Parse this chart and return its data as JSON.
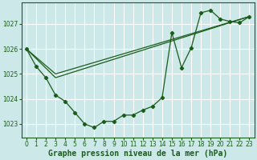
{
  "background_color": "#cce8e8",
  "grid_color": "#ffffff",
  "line_color": "#1a5c1a",
  "title": "Graphe pression niveau de la mer (hPa)",
  "title_fontsize": 7.0,
  "ylabel_ticks": [
    1023,
    1024,
    1025,
    1026,
    1027
  ],
  "xlim": [
    -0.5,
    23.5
  ],
  "ylim": [
    1022.45,
    1027.85
  ],
  "x_ticks": [
    0,
    1,
    2,
    3,
    4,
    5,
    6,
    7,
    8,
    9,
    10,
    11,
    12,
    13,
    14,
    15,
    16,
    17,
    18,
    19,
    20,
    21,
    22,
    23
  ],
  "line1_x": [
    0,
    1,
    2,
    3,
    4,
    5,
    6,
    7,
    8,
    9,
    10,
    11,
    12,
    13,
    14,
    15,
    16,
    17,
    18,
    19,
    20,
    21,
    22,
    23
  ],
  "line1_y": [
    1026.0,
    1025.3,
    1024.85,
    1024.15,
    1023.9,
    1023.45,
    1023.0,
    1022.85,
    1023.1,
    1023.1,
    1023.35,
    1023.35,
    1023.55,
    1023.7,
    1024.05,
    1026.65,
    1025.25,
    1026.05,
    1027.45,
    1027.55,
    1027.2,
    1027.1,
    1027.05,
    1027.3
  ],
  "line2_x": [
    0,
    3,
    23
  ],
  "line2_y": [
    1026.0,
    1025.0,
    1027.3
  ],
  "line3_x": [
    0,
    3,
    23
  ],
  "line3_y": [
    1026.0,
    1024.85,
    1027.3
  ],
  "marker_x": [
    0,
    1,
    2,
    3,
    4,
    5,
    6,
    7,
    8,
    9,
    10,
    11,
    12,
    13,
    14,
    15,
    16,
    17,
    18,
    19,
    20,
    21,
    22,
    23
  ],
  "marker_y": [
    1026.0,
    1025.3,
    1024.85,
    1024.15,
    1023.9,
    1023.45,
    1023.0,
    1022.85,
    1023.1,
    1023.1,
    1023.35,
    1023.35,
    1023.55,
    1023.7,
    1024.05,
    1026.65,
    1025.25,
    1026.05,
    1027.45,
    1027.55,
    1027.2,
    1027.1,
    1027.05,
    1027.3
  ]
}
